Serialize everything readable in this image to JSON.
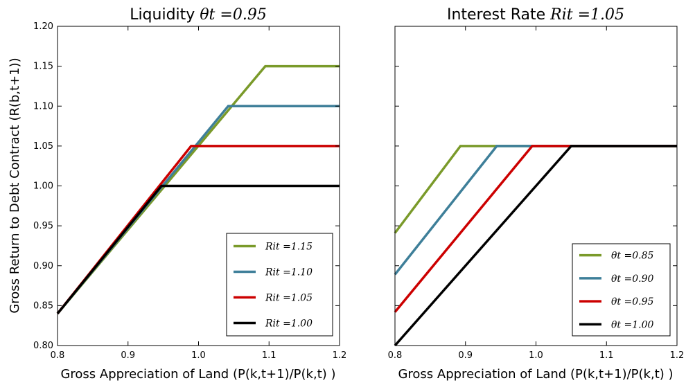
{
  "chart_data": [
    {
      "type": "line",
      "title": "Liquidity θt =0.95",
      "title_text": "Liquidity",
      "title_math": "θt =0.95",
      "xlabel": "Gross Appreciation of Land (P(k,t+1)/P(k,t) )",
      "ylabel": "Gross Return to Debt Contract (R(b,t+1))",
      "xlim": [
        0.8,
        1.2
      ],
      "ylim": [
        0.8,
        1.2
      ],
      "xticks": [
        "0.8",
        "0.9",
        "1.0",
        "1.1",
        "1.2"
      ],
      "yticks": [
        "0.80",
        "0.85",
        "0.90",
        "0.95",
        "1.00",
        "1.05",
        "1.10",
        "1.15",
        "1.20"
      ],
      "grid": false,
      "legend_position": "lower-right",
      "series": [
        {
          "name": "Rit =1.15",
          "color": "#7a9a2a",
          "x": [
            0.8,
            1.0947,
            1.2
          ],
          "y": [
            0.84,
            1.15,
            1.15
          ]
        },
        {
          "name": "Rit =1.10",
          "color": "#3e7f99",
          "x": [
            0.8,
            1.0421,
            1.2
          ],
          "y": [
            0.84,
            1.1,
            1.1
          ]
        },
        {
          "name": "Rit =1.05",
          "color": "#cc0000",
          "x": [
            0.8,
            0.9895,
            1.2
          ],
          "y": [
            0.84,
            1.05,
            1.05
          ]
        },
        {
          "name": "Rit =1.00",
          "color": "#000000",
          "x": [
            0.8,
            0.9474,
            1.2
          ],
          "y": [
            0.84,
            1.0,
            1.0
          ]
        }
      ]
    },
    {
      "type": "line",
      "title": "Interest Rate Rit =1.05",
      "title_text": "Interest Rate",
      "title_math": "Rit =1.05",
      "xlabel": "Gross Appreciation of Land (P(k,t+1)/P(k,t) )",
      "ylabel": "",
      "xlim": [
        0.8,
        1.2
      ],
      "ylim": [
        0.8,
        1.2
      ],
      "xticks": [
        "0.8",
        "0.9",
        "1.0",
        "1.1",
        "1.2"
      ],
      "yticks": [],
      "grid": false,
      "legend_position": "lower-right",
      "series": [
        {
          "name": "θt =0.85",
          "color": "#7a9a2a",
          "x": [
            0.8,
            0.8929,
            1.2
          ],
          "y": [
            0.941,
            1.05,
            1.05
          ]
        },
        {
          "name": "θt =0.90",
          "color": "#3e7f99",
          "x": [
            0.8,
            0.9444,
            1.2
          ],
          "y": [
            0.889,
            1.05,
            1.05
          ]
        },
        {
          "name": "θt =0.95",
          "color": "#cc0000",
          "x": [
            0.8,
            0.9947,
            1.2
          ],
          "y": [
            0.842,
            1.05,
            1.05
          ]
        },
        {
          "name": "θt =1.00",
          "color": "#000000",
          "x": [
            0.8,
            1.05,
            1.2
          ],
          "y": [
            0.8,
            1.05,
            1.05
          ]
        }
      ]
    }
  ]
}
